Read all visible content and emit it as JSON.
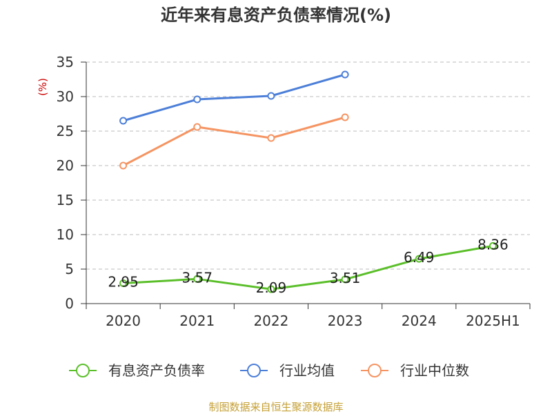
{
  "chart_data": {
    "type": "line",
    "title": "近年来有息资产负债率情况(%)",
    "xlabel": "",
    "ylabel": "(%)",
    "categories": [
      "2020",
      "2021",
      "2022",
      "2023",
      "2024",
      "2025H1"
    ],
    "ylim": [
      0,
      35
    ],
    "yticks": [
      0,
      5,
      10,
      15,
      20,
      25,
      30,
      35
    ],
    "grid": true,
    "grid_style": "dashed horizontal",
    "legend_position": "bottom",
    "series": [
      {
        "name": "有息资产负债率",
        "color": "#5bbf2a",
        "data_labels": true,
        "values": [
          2.95,
          3.57,
          2.09,
          3.51,
          6.49,
          8.36
        ]
      },
      {
        "name": "行业均值",
        "color": "#4c7fd8",
        "data_labels": false,
        "values": [
          26.5,
          29.6,
          30.1,
          33.2,
          null,
          null
        ]
      },
      {
        "name": "行业中位数",
        "color": "#f59462",
        "data_labels": false,
        "values": [
          20.0,
          25.6,
          24.0,
          27.0,
          null,
          null
        ]
      }
    ]
  },
  "source_note": "制图数据来自恒生聚源数据库",
  "colors": {
    "title": "#333333",
    "ylabel": "#cc0000",
    "axis": "#333333",
    "grid": "#bbbbbb",
    "source_note": "#c5a035"
  }
}
